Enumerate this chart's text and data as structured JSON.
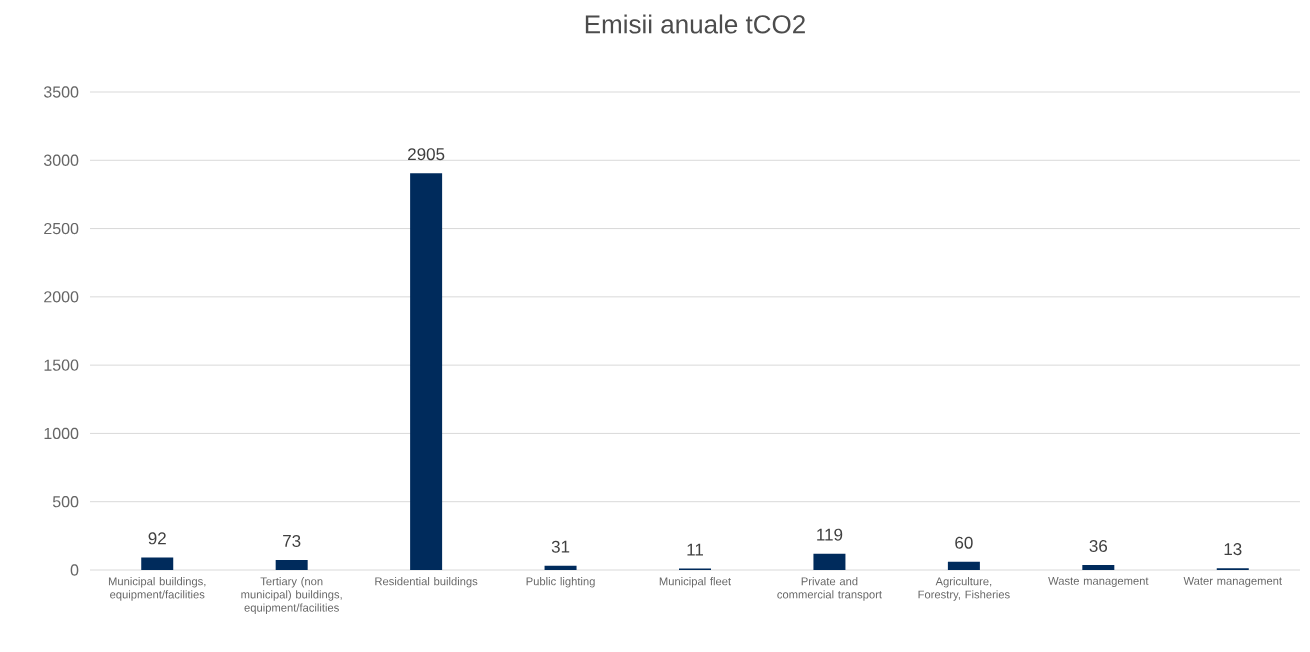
{
  "chart_data": {
    "type": "bar",
    "title": "Emisii anuale tCO2",
    "categories": [
      "Municipal buildings, equipment/facilities",
      "Tertiary (non municipal) buildings, equipment/facilities",
      "Residential buildings",
      "Public lighting",
      "Municipal fleet",
      "Private and commercial transport",
      "Agriculture, Forestry, Fisheries",
      "Waste management",
      "Water management"
    ],
    "values": [
      92,
      73,
      2905,
      31,
      11,
      119,
      60,
      36,
      13
    ],
    "color": "#002b5c",
    "ylim": [
      0,
      3500
    ],
    "yticks": [
      0,
      500,
      1000,
      1500,
      2000,
      2500,
      3000,
      3500
    ],
    "grid": "y",
    "data_labels": true
  }
}
